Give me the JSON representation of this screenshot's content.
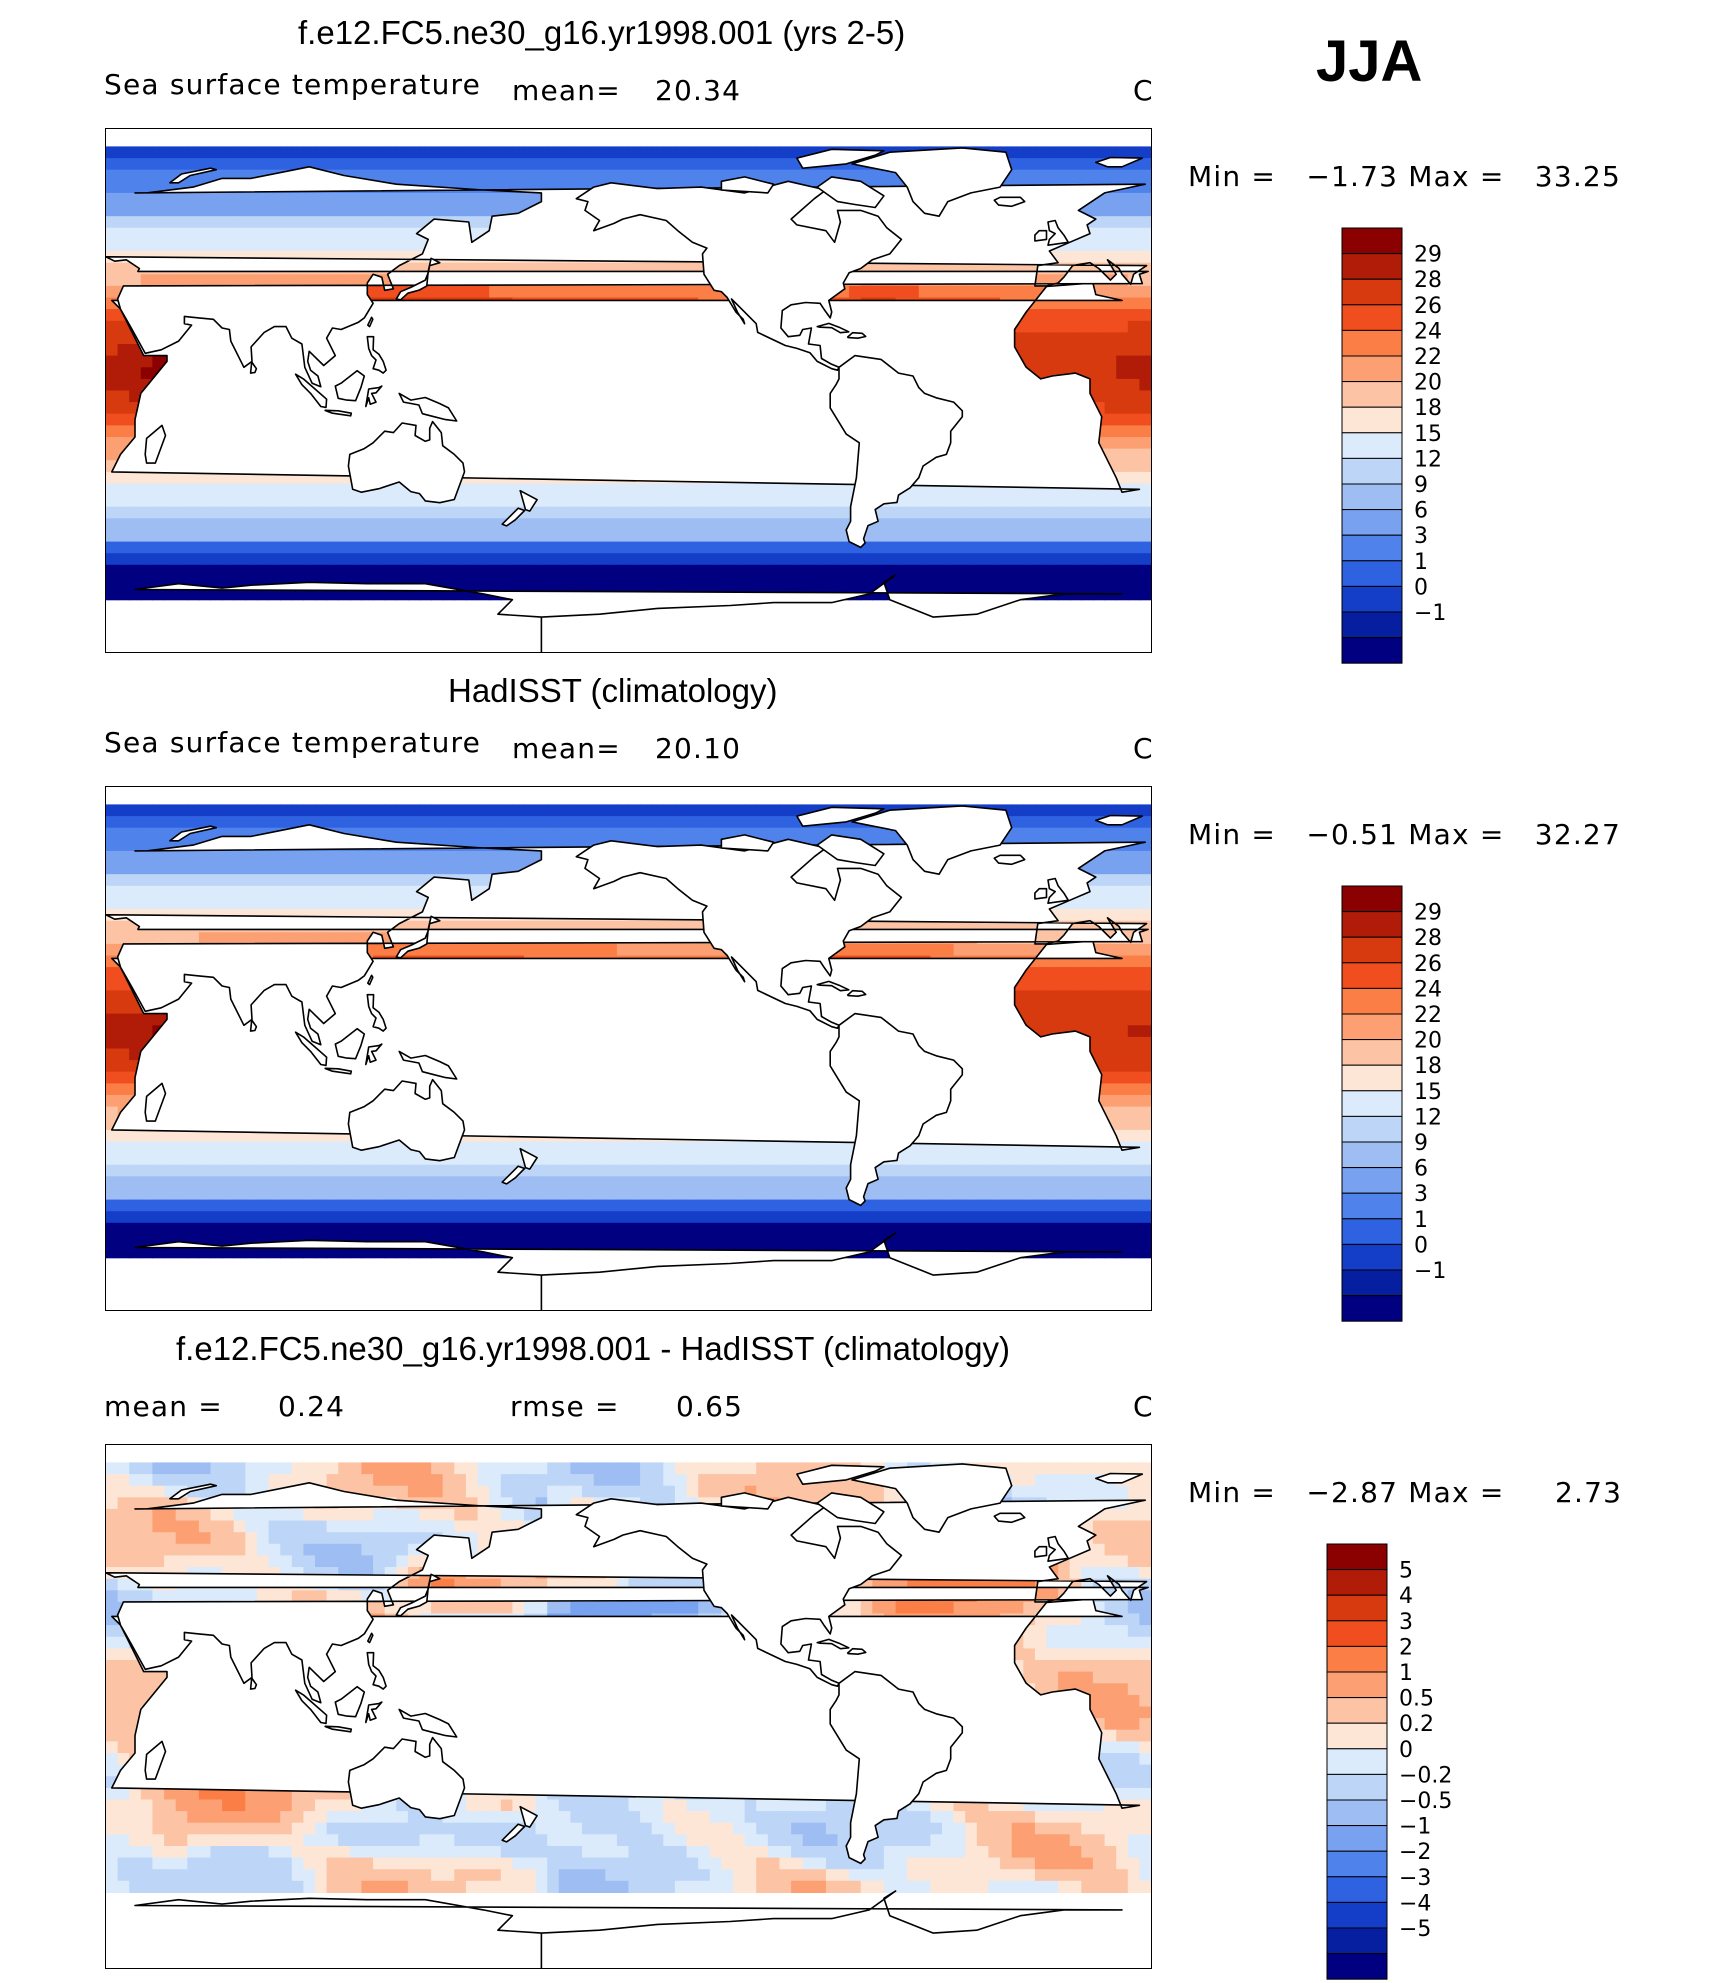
{
  "season": "JJA",
  "panels": [
    {
      "id": "model",
      "title": "f.e12.FC5.ne30_g16.yr1998.001 (yrs 2-5)",
      "variable": "Sea surface temperature",
      "stat1_label": "mean=",
      "stat1_value": "20.34",
      "units": "C",
      "min_max": "Min =   −1.73 Max =   33.25",
      "colorbar_labels": [
        "29",
        "28",
        "26",
        "24",
        "22",
        "20",
        "18",
        "15",
        "12",
        "9",
        "6",
        "3",
        "1",
        "0",
        "−1"
      ],
      "colors": [
        "#8b0000",
        "#b01c08",
        "#d83a10",
        "#f04e1e",
        "#fa7e46",
        "#fca074",
        "#fcc4a4",
        "#fde6d6",
        "#dcebfb",
        "#bdd6f7",
        "#9ebef3",
        "#78a2ef",
        "#4f83eb",
        "#2e62e0",
        "#143ec8",
        "#061ea0",
        "#000080"
      ]
    },
    {
      "id": "obs",
      "title": "HadISST (climatology)",
      "variable": "Sea surface temperature",
      "stat1_label": "mean=",
      "stat1_value": "20.10",
      "units": "C",
      "min_max": "Min =   −0.51 Max =   32.27",
      "colorbar_labels": [
        "29",
        "28",
        "26",
        "24",
        "22",
        "20",
        "18",
        "15",
        "12",
        "9",
        "6",
        "3",
        "1",
        "0",
        "−1"
      ],
      "colors": [
        "#8b0000",
        "#b01c08",
        "#d83a10",
        "#f04e1e",
        "#fa7e46",
        "#fca074",
        "#fcc4a4",
        "#fde6d6",
        "#dcebfb",
        "#bdd6f7",
        "#9ebef3",
        "#78a2ef",
        "#4f83eb",
        "#2e62e0",
        "#143ec8",
        "#061ea0",
        "#000080"
      ]
    },
    {
      "id": "diff",
      "title": "f.e12.FC5.ne30_g16.yr1998.001 - HadISST (climatology)",
      "stat1_label": "mean =",
      "stat1_value": "0.24",
      "stat2_label": "rmse =",
      "stat2_value": "0.65",
      "units": "C",
      "min_max": "Min =   −2.87 Max =     2.73",
      "colorbar_labels": [
        "5",
        "4",
        "3",
        "2",
        "1",
        "0.5",
        "0.2",
        "0",
        "−0.2",
        "−0.5",
        "−1",
        "−2",
        "−3",
        "−4",
        "−5"
      ],
      "colors": [
        "#8b0000",
        "#b01c08",
        "#d83a10",
        "#f04e1e",
        "#fa7e46",
        "#fca074",
        "#fcc4a4",
        "#fde6d6",
        "#dcebfb",
        "#bdd6f7",
        "#9ebef3",
        "#78a2ef",
        "#4f83eb",
        "#2e62e0",
        "#143ec8",
        "#061ea0",
        "#000080"
      ]
    }
  ]
}
